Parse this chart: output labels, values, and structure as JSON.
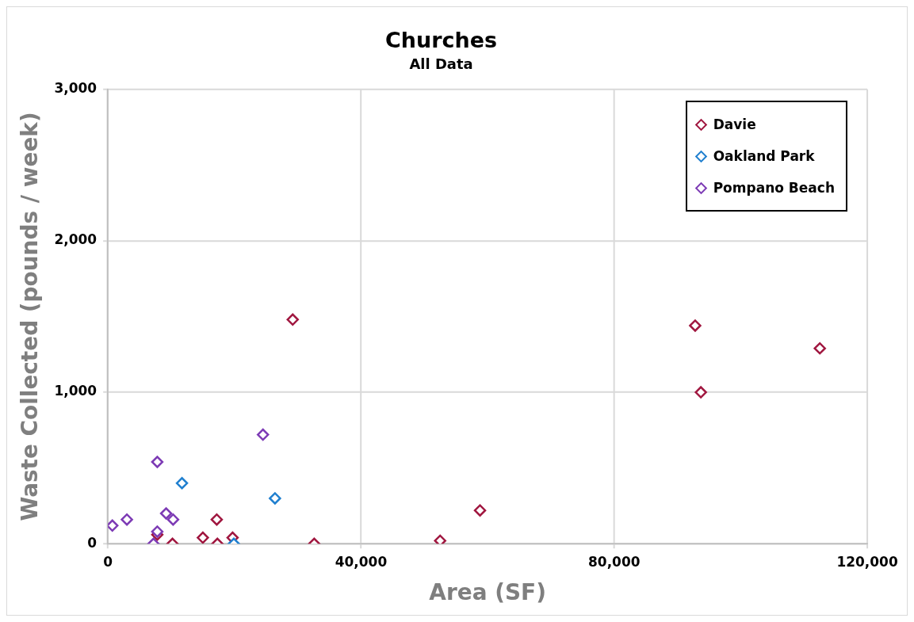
{
  "chart_data": {
    "type": "scatter",
    "title": "Churches",
    "subtitle": "All Data",
    "xlabel": "Area (SF)",
    "ylabel": "Waste Collected (pounds / week)",
    "xlim": [
      0,
      120000
    ],
    "ylim": [
      0,
      3000
    ],
    "xticks": [
      0,
      {
        "value": 40000,
        "label": "40,000"
      },
      {
        "value": 80000,
        "label": "80,000"
      },
      {
        "value": 120000,
        "label": "120,000"
      }
    ],
    "yticks": [
      0,
      {
        "value": 1000,
        "label": "1,000"
      },
      {
        "value": 2000,
        "label": "2,000"
      },
      {
        "value": 3000,
        "label": "3,000"
      }
    ],
    "grid": true,
    "legend": "top right",
    "marker": "diamond",
    "series": [
      {
        "name": "Davie",
        "color": "#a0163f",
        "x": [
          7800,
          10200,
          15000,
          17200,
          17300,
          19700,
          32600,
          29200,
          52500,
          58800,
          92800,
          93700,
          112500
        ],
        "values": [
          60,
          0,
          40,
          160,
          0,
          40,
          0,
          1480,
          20,
          220,
          1440,
          1000,
          1290
        ]
      },
      {
        "name": "Oakland Park",
        "color": "#1f7fcf",
        "x": [
          11700,
          26400,
          19900
        ],
        "values": [
          400,
          300,
          0
        ]
      },
      {
        "name": "Pompano Beach",
        "color": "#7d3bb5",
        "x": [
          700,
          3000,
          7800,
          9200,
          10300,
          7800,
          7200,
          24500
        ],
        "values": [
          120,
          160,
          540,
          200,
          160,
          80,
          0,
          720
        ]
      }
    ]
  }
}
